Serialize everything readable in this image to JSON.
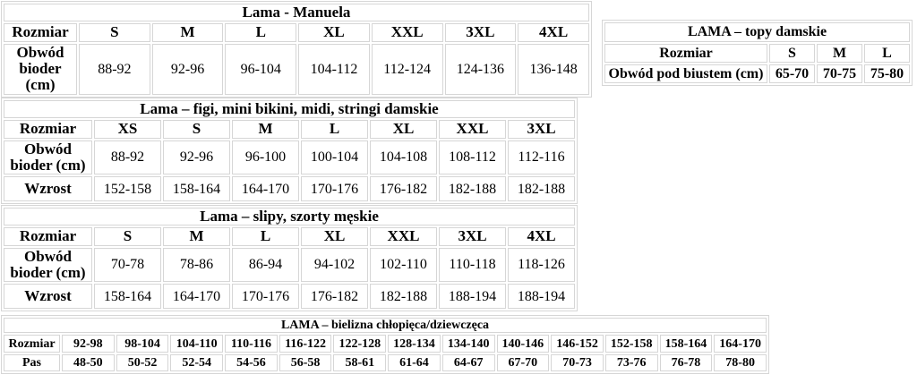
{
  "colors": {
    "background": "#ffffff",
    "border": "#d6d6d6",
    "text": "#000000"
  },
  "tables": {
    "manuela": {
      "title": "Lama - Manuela",
      "size_label": "Rozmiar",
      "sizes": [
        "S",
        "M",
        "L",
        "XL",
        "XXL",
        "3XL",
        "4XL"
      ],
      "rows": [
        {
          "label": "Obwód bioder (cm)",
          "values": [
            "88-92",
            "92-96",
            "96-104",
            "104-112",
            "112-124",
            "124-136",
            "136-148"
          ]
        }
      ]
    },
    "topy": {
      "title": "LAMA – topy damskie",
      "size_label": "Rozmiar",
      "sizes": [
        "S",
        "M",
        "L"
      ],
      "rows": [
        {
          "label": "Obwód pod biustem (cm)",
          "values": [
            "65-70",
            "70-75",
            "75-80"
          ]
        }
      ]
    },
    "figi": {
      "title": "Lama – figi, mini bikini, midi, stringi damskie",
      "size_label": "Rozmiar",
      "sizes": [
        "XS",
        "S",
        "M",
        "L",
        "XL",
        "XXL",
        "3XL"
      ],
      "rows": [
        {
          "label": "Obwód bioder (cm)",
          "values": [
            "88-92",
            "92-96",
            "96-100",
            "100-104",
            "104-108",
            "108-112",
            "112-116"
          ]
        },
        {
          "label": "Wzrost",
          "values": [
            "152-158",
            "158-164",
            "164-170",
            "170-176",
            "176-182",
            "182-188",
            "182-188"
          ]
        }
      ]
    },
    "slipy": {
      "title": "Lama – slipy, szorty męskie",
      "size_label": "Rozmiar",
      "sizes": [
        "S",
        "M",
        "L",
        "XL",
        "XXL",
        "3XL",
        "4XL"
      ],
      "rows": [
        {
          "label": "Obwód bioder (cm)",
          "values": [
            "70-78",
            "78-86",
            "86-94",
            "94-102",
            "102-110",
            "110-118",
            "118-126"
          ]
        },
        {
          "label": "Wzrost",
          "values": [
            "158-164",
            "164-170",
            "170-176",
            "176-182",
            "182-188",
            "188-194",
            "188-194"
          ]
        }
      ]
    },
    "dzieci": {
      "title": "LAMA – bielizna chłopięca/dziewczęca",
      "size_label": "Rozmiar",
      "sizes": [
        "92-98",
        "98-104",
        "104-110",
        "110-116",
        "116-122",
        "122-128",
        "128-134",
        "134-140",
        "140-146",
        "146-152",
        "152-158",
        "158-164",
        "164-170"
      ],
      "rows": [
        {
          "label": "Pas",
          "values": [
            "48-50",
            "50-52",
            "52-54",
            "54-56",
            "56-58",
            "58-61",
            "61-64",
            "64-67",
            "67-70",
            "70-73",
            "73-76",
            "76-78",
            "78-80"
          ]
        }
      ]
    }
  }
}
